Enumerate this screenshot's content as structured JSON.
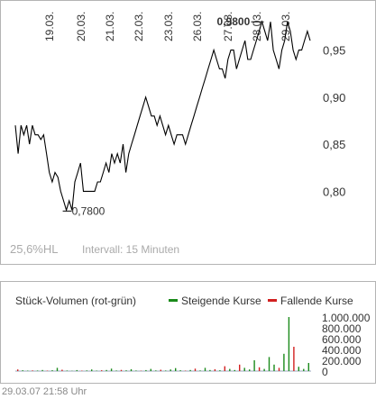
{
  "chart_data": [
    {
      "type": "line",
      "x_tick_labels": [
        "19.03.",
        "20.03.",
        "21.03.",
        "22.03.",
        "23.03.",
        "26.03.",
        "27.03.",
        "28.03.",
        "29.03."
      ],
      "yticks": [
        "0,95",
        "0,90",
        "0,85",
        "0,80"
      ],
      "ylim": [
        0.765,
        0.985
      ],
      "annotations": {
        "low": "0,7800",
        "high": "0,9800"
      },
      "low_value": 0.78,
      "high_value": 0.98,
      "series": [
        {
          "values": [
            0.87,
            0.84,
            0.87,
            0.86,
            0.87,
            0.85,
            0.87,
            0.86,
            0.86,
            0.855,
            0.86,
            0.84,
            0.82,
            0.81,
            0.82,
            0.815,
            0.8,
            0.79,
            0.78,
            0.79,
            0.78,
            0.81,
            0.82,
            0.83,
            0.8,
            0.8,
            0.8,
            0.8,
            0.8,
            0.81,
            0.81,
            0.82,
            0.83,
            0.82,
            0.84,
            0.83,
            0.84,
            0.83,
            0.85,
            0.82,
            0.84,
            0.85,
            0.86,
            0.87,
            0.88,
            0.89,
            0.9,
            0.89,
            0.88,
            0.88,
            0.87,
            0.88,
            0.87,
            0.86,
            0.87,
            0.86,
            0.85,
            0.86,
            0.86,
            0.86,
            0.85,
            0.86,
            0.87,
            0.88,
            0.89,
            0.9,
            0.91,
            0.92,
            0.93,
            0.94,
            0.95,
            0.94,
            0.93,
            0.93,
            0.92,
            0.94,
            0.95,
            0.95,
            0.93,
            0.94,
            0.95,
            0.96,
            0.94,
            0.94,
            0.95,
            0.96,
            0.97,
            0.98,
            0.97,
            0.96,
            0.98,
            0.95,
            0.94,
            0.93,
            0.95,
            0.96,
            0.98,
            0.97,
            0.95,
            0.94,
            0.95,
            0.95,
            0.96,
            0.97,
            0.96
          ]
        }
      ]
    },
    {
      "type": "bar",
      "title": "Stück-Volumen (rot-grün)",
      "legend": [
        "Steigende Kurse",
        "Fallende Kurse"
      ],
      "yticks": [
        "1.000.000",
        "800.000",
        "600.000",
        "400.000",
        "200.000",
        "0"
      ],
      "ylim": [
        0,
        1000000
      ],
      "colors": {
        "rising": "#1a8a1a",
        "falling": "#d22020"
      },
      "bars": [
        {
          "v": 30000,
          "c": "r"
        },
        {
          "v": 15000,
          "c": "g"
        },
        {
          "v": 8000,
          "c": "g"
        },
        {
          "v": 12000,
          "c": "r"
        },
        {
          "v": 10000,
          "c": "g"
        },
        {
          "v": 20000,
          "c": "g"
        },
        {
          "v": 8000,
          "c": "r"
        },
        {
          "v": 15000,
          "c": "g"
        },
        {
          "v": 60000,
          "c": "g"
        },
        {
          "v": 25000,
          "c": "r"
        },
        {
          "v": 10000,
          "c": "g"
        },
        {
          "v": 5000,
          "c": "g"
        },
        {
          "v": 18000,
          "c": "g"
        },
        {
          "v": 8000,
          "c": "r"
        },
        {
          "v": 12000,
          "c": "g"
        },
        {
          "v": 30000,
          "c": "g"
        },
        {
          "v": 9000,
          "c": "g"
        },
        {
          "v": 15000,
          "c": "r"
        },
        {
          "v": 20000,
          "c": "g"
        },
        {
          "v": 45000,
          "c": "g"
        },
        {
          "v": 10000,
          "c": "g"
        },
        {
          "v": 22000,
          "c": "r"
        },
        {
          "v": 14000,
          "c": "g"
        },
        {
          "v": 35000,
          "c": "g"
        },
        {
          "v": 10000,
          "c": "g"
        },
        {
          "v": 6000,
          "c": "r"
        },
        {
          "v": 18000,
          "c": "g"
        },
        {
          "v": 40000,
          "c": "g"
        },
        {
          "v": 12000,
          "c": "g"
        },
        {
          "v": 25000,
          "c": "r"
        },
        {
          "v": 10000,
          "c": "g"
        },
        {
          "v": 30000,
          "c": "g"
        },
        {
          "v": 55000,
          "c": "g"
        },
        {
          "v": 15000,
          "c": "g"
        },
        {
          "v": 8000,
          "c": "r"
        },
        {
          "v": 20000,
          "c": "g"
        },
        {
          "v": 45000,
          "c": "r"
        },
        {
          "v": 12000,
          "c": "g"
        },
        {
          "v": 60000,
          "c": "g"
        },
        {
          "v": 20000,
          "c": "g"
        },
        {
          "v": 35000,
          "c": "r"
        },
        {
          "v": 15000,
          "c": "g"
        },
        {
          "v": 90000,
          "c": "r"
        },
        {
          "v": 40000,
          "c": "g"
        },
        {
          "v": 20000,
          "c": "g"
        },
        {
          "v": 120000,
          "c": "r"
        },
        {
          "v": 60000,
          "c": "g"
        },
        {
          "v": 30000,
          "c": "g"
        },
        {
          "v": 200000,
          "c": "g"
        },
        {
          "v": 70000,
          "c": "r"
        },
        {
          "v": 40000,
          "c": "g"
        },
        {
          "v": 260000,
          "c": "g"
        },
        {
          "v": 120000,
          "c": "g"
        },
        {
          "v": 60000,
          "c": "r"
        },
        {
          "v": 320000,
          "c": "g"
        },
        {
          "v": 1000000,
          "c": "g"
        },
        {
          "v": 450000,
          "c": "r"
        },
        {
          "v": 80000,
          "c": "g"
        },
        {
          "v": 40000,
          "c": "g"
        },
        {
          "v": 150000,
          "c": "g"
        }
      ]
    }
  ],
  "info": {
    "range": "25,6%HL",
    "interval": "Intervall: 15 Minuten"
  },
  "footer": "29.03.07   21:58 Uhr"
}
